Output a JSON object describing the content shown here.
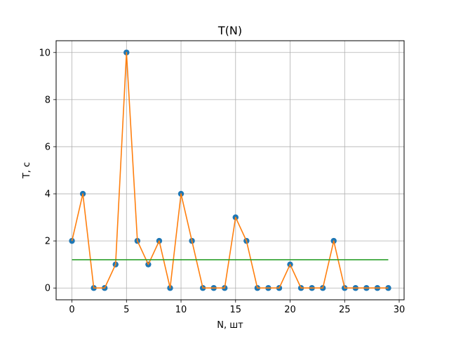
{
  "chart_data": {
    "type": "line",
    "title": "T(N)",
    "xlabel": "N, шт",
    "ylabel": "T, с",
    "xlim": [
      -1.45,
      30.45
    ],
    "ylim": [
      -0.5,
      10.5
    ],
    "xticks": [
      0,
      5,
      10,
      15,
      20,
      25,
      30
    ],
    "yticks": [
      0,
      2,
      4,
      6,
      8,
      10
    ],
    "grid": true,
    "colors": {
      "points": "#1f77b4",
      "line": "#ff7f0e",
      "mean": "#2ca02c"
    },
    "series": [
      {
        "kind": "scatter",
        "x": [
          0,
          1,
          2,
          3,
          4,
          5,
          6,
          7,
          8,
          9,
          10,
          11,
          12,
          13,
          14,
          15,
          16,
          17,
          18,
          19,
          20,
          21,
          22,
          23,
          24,
          25,
          26,
          27,
          28,
          29
        ],
        "y": [
          2,
          4,
          0,
          0,
          1,
          10,
          2,
          1,
          2,
          0,
          4,
          2,
          0,
          0,
          0,
          3,
          2,
          0,
          0,
          0,
          1,
          0,
          0,
          0,
          2,
          0,
          0,
          0,
          0,
          0
        ]
      },
      {
        "kind": "line",
        "x": [
          0,
          1,
          2,
          3,
          4,
          5,
          6,
          7,
          8,
          9,
          10,
          11,
          12,
          13,
          14,
          15,
          16,
          17,
          18,
          19,
          20,
          21,
          22,
          23,
          24,
          25,
          26,
          27,
          28,
          29
        ],
        "y": [
          2,
          4,
          0,
          0,
          1,
          10,
          2,
          1,
          2,
          0,
          4,
          2,
          0,
          0,
          0,
          3,
          2,
          0,
          0,
          0,
          1,
          0,
          0,
          0,
          2,
          0,
          0,
          0,
          0,
          0
        ]
      },
      {
        "kind": "hline",
        "x": [
          0,
          29
        ],
        "y": [
          1.2,
          1.2
        ]
      }
    ]
  }
}
